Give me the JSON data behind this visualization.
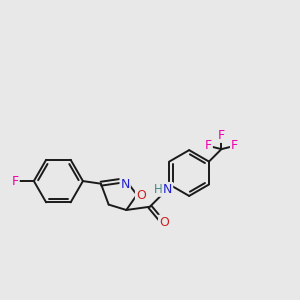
{
  "background_color": "#e8e8e8",
  "bond_color": "#1a1a1a",
  "atom_colors": {
    "F": "#ee00aa",
    "N": "#2222cc",
    "O": "#cc2222",
    "H": "#448888"
  },
  "figsize": [
    3.0,
    3.0
  ],
  "dpi": 100
}
